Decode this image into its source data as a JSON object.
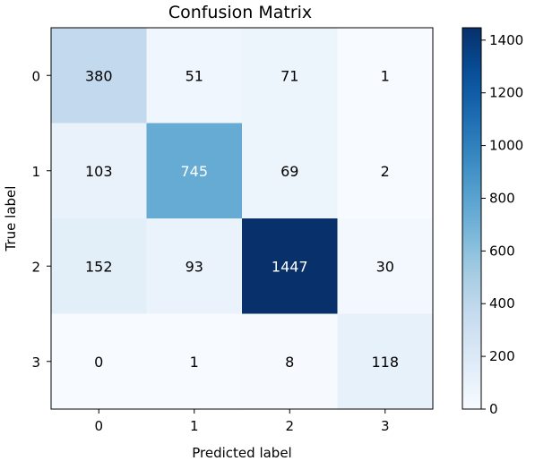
{
  "chart_data": {
    "type": "heatmap",
    "title": "Confusion Matrix",
    "xlabel": "Predicted label",
    "ylabel": "True label",
    "x_categories": [
      "0",
      "1",
      "2",
      "3"
    ],
    "y_categories": [
      "0",
      "1",
      "2",
      "3"
    ],
    "values": [
      [
        380,
        51,
        71,
        1
      ],
      [
        103,
        745,
        69,
        2
      ],
      [
        152,
        93,
        1447,
        30
      ],
      [
        0,
        1,
        8,
        118
      ]
    ],
    "colormap": "Blues",
    "colorbar": {
      "range": [
        0,
        1447
      ],
      "ticks": [
        0,
        200,
        400,
        600,
        800,
        1000,
        1200,
        1400
      ]
    },
    "colors": {
      "low": "#f7fbff",
      "high": "#08306b",
      "text_on_light": "#000000",
      "text_on_dark": "#ffffff"
    }
  }
}
